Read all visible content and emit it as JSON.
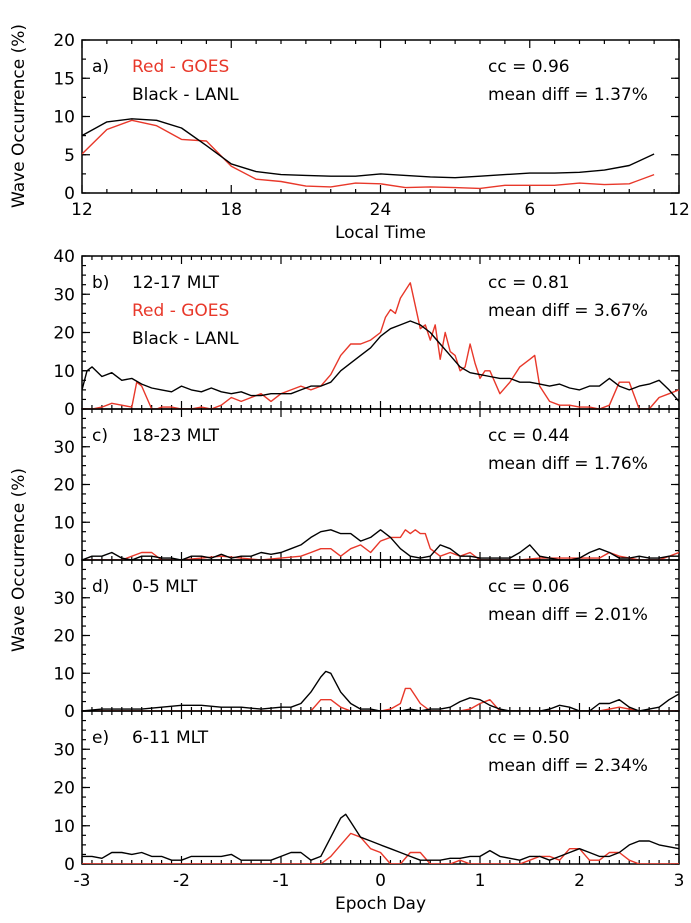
{
  "chart_data": [
    {
      "type": "line",
      "panel": "a)",
      "ylabel": "Wave Occurrence (%)",
      "xlabel": "Local Time",
      "xlim": [
        0,
        24
      ],
      "xticks": [
        0,
        6,
        12,
        18,
        24
      ],
      "xticklabels": [
        "12",
        "18",
        "24",
        "6",
        "12"
      ],
      "ylim": [
        0,
        20
      ],
      "yticks": [
        0,
        5,
        10,
        15,
        20
      ],
      "legend": [
        {
          "text": "Red - GOES",
          "color": "#e8382a"
        },
        {
          "text": "Black - LANL",
          "color": "#000000"
        }
      ],
      "cc_text": "cc = 0.96",
      "diff_text": "mean diff = 1.37%",
      "series": [
        {
          "name": "LANL",
          "color": "#000000",
          "x": [
            0,
            1,
            2,
            3,
            4,
            5,
            6,
            7,
            8,
            9,
            10,
            11,
            12,
            13,
            14,
            15,
            16,
            17,
            18,
            19,
            20,
            21,
            22,
            23
          ],
          "values": [
            7.5,
            9.3,
            9.7,
            9.5,
            8.5,
            6.2,
            3.8,
            2.8,
            2.4,
            2.3,
            2.2,
            2.2,
            2.5,
            2.3,
            2.1,
            2.0,
            2.2,
            2.4,
            2.6,
            2.6,
            2.7,
            3.0,
            3.6,
            5.1
          ]
        },
        {
          "name": "GOES",
          "color": "#e8382a",
          "x": [
            0,
            1,
            2,
            3,
            4,
            5,
            6,
            7,
            8,
            9,
            10,
            11,
            12,
            13,
            14,
            15,
            16,
            17,
            18,
            19,
            20,
            21,
            22,
            23
          ],
          "values": [
            5.1,
            8.3,
            9.5,
            8.8,
            7.0,
            6.8,
            3.5,
            1.8,
            1.5,
            0.9,
            0.8,
            1.3,
            1.2,
            0.7,
            0.8,
            0.7,
            0.6,
            1.0,
            1.0,
            1.0,
            1.3,
            1.1,
            1.2,
            2.4
          ]
        }
      ]
    },
    {
      "type": "line",
      "panel": "b)",
      "label": "12-17 MLT",
      "xlim": [
        -3,
        3
      ],
      "ylim": [
        0,
        40
      ],
      "yticks": [
        0,
        10,
        20,
        30,
        40
      ],
      "legend": [
        {
          "text": "Red - GOES",
          "color": "#e8382a"
        },
        {
          "text": "Black - LANL",
          "color": "#000000"
        }
      ],
      "cc_text": "cc = 0.81",
      "diff_text": "mean diff = 3.67%",
      "series": [
        {
          "name": "LANL",
          "color": "#000000",
          "x": [
            -3.0,
            -2.95,
            -2.9,
            -2.8,
            -2.7,
            -2.6,
            -2.5,
            -2.4,
            -2.3,
            -2.2,
            -2.1,
            -2.0,
            -1.9,
            -1.8,
            -1.7,
            -1.6,
            -1.5,
            -1.4,
            -1.3,
            -1.2,
            -1.1,
            -1.0,
            -0.9,
            -0.8,
            -0.7,
            -0.6,
            -0.5,
            -0.4,
            -0.3,
            -0.2,
            -0.1,
            0.0,
            0.1,
            0.2,
            0.3,
            0.4,
            0.5,
            0.6,
            0.7,
            0.8,
            0.9,
            1.0,
            1.1,
            1.2,
            1.3,
            1.4,
            1.5,
            1.6,
            1.7,
            1.8,
            1.9,
            2.0,
            2.1,
            2.2,
            2.3,
            2.4,
            2.5,
            2.6,
            2.7,
            2.8,
            2.9,
            3.0
          ],
          "values": [
            5,
            10,
            11,
            8.5,
            9.5,
            7.5,
            8,
            6.5,
            5.5,
            5,
            4.5,
            6,
            5,
            4.5,
            5.5,
            4.5,
            4,
            4.5,
            3.5,
            3.5,
            4,
            4,
            4,
            5,
            6,
            6,
            7,
            10,
            12,
            14,
            16,
            19,
            21,
            22,
            23,
            22,
            20,
            17,
            14,
            11,
            9.5,
            9,
            8.5,
            8,
            8,
            7,
            7,
            6.5,
            6,
            6.5,
            5.5,
            5,
            6,
            6,
            8,
            6,
            5,
            6,
            6.5,
            7.5,
            5,
            2
          ]
        },
        {
          "name": "GOES",
          "color": "#e8382a",
          "x": [
            -3.0,
            -2.9,
            -2.8,
            -2.7,
            -2.6,
            -2.5,
            -2.45,
            -2.4,
            -2.3,
            -2.25,
            -2.2,
            -2.1,
            -2.0,
            -1.9,
            -1.8,
            -1.7,
            -1.6,
            -1.5,
            -1.4,
            -1.3,
            -1.2,
            -1.1,
            -1.0,
            -0.9,
            -0.8,
            -0.7,
            -0.6,
            -0.5,
            -0.4,
            -0.3,
            -0.2,
            -0.1,
            0.0,
            0.05,
            0.1,
            0.15,
            0.2,
            0.25,
            0.3,
            0.35,
            0.4,
            0.45,
            0.5,
            0.55,
            0.6,
            0.65,
            0.7,
            0.75,
            0.8,
            0.85,
            0.9,
            0.95,
            1.0,
            1.05,
            1.1,
            1.2,
            1.3,
            1.4,
            1.5,
            1.55,
            1.6,
            1.7,
            1.8,
            1.9,
            2.0,
            2.1,
            2.2,
            2.3,
            2.4,
            2.5,
            2.6,
            2.7,
            2.8,
            2.9,
            3.0
          ],
          "values": [
            0,
            0,
            0.5,
            1.5,
            1,
            0.5,
            7,
            6,
            0,
            0,
            0.5,
            0.5,
            0,
            0,
            0.5,
            0,
            1,
            3,
            2,
            3,
            4,
            2,
            4,
            5,
            6,
            5,
            6,
            9,
            14,
            17,
            17,
            18,
            20,
            24,
            26,
            25,
            29,
            31,
            33,
            27,
            21,
            22,
            18,
            22,
            13,
            20,
            15,
            14,
            10,
            11,
            17,
            12,
            8,
            10,
            10,
            4,
            7,
            11,
            13,
            14,
            6,
            2,
            1,
            1,
            0.5,
            0.5,
            0,
            1,
            7,
            7,
            0,
            0,
            3,
            4,
            5
          ]
        }
      ]
    },
    {
      "type": "line",
      "panel": "c)",
      "label": "18-23 MLT",
      "xlim": [
        -3,
        3
      ],
      "ylim": [
        0,
        40
      ],
      "yticks": [
        0,
        10,
        20,
        30
      ],
      "cc_text": "cc = 0.44",
      "diff_text": "mean diff = 1.76%",
      "series": [
        {
          "name": "LANL",
          "color": "#000000",
          "x": [
            -3.0,
            -2.9,
            -2.8,
            -2.7,
            -2.6,
            -2.5,
            -2.4,
            -2.3,
            -2.2,
            -2.1,
            -2.0,
            -1.9,
            -1.8,
            -1.7,
            -1.6,
            -1.5,
            -1.4,
            -1.3,
            -1.2,
            -1.1,
            -1.0,
            -0.9,
            -0.8,
            -0.7,
            -0.6,
            -0.5,
            -0.4,
            -0.3,
            -0.2,
            -0.1,
            0.0,
            0.1,
            0.2,
            0.3,
            0.4,
            0.5,
            0.6,
            0.7,
            0.8,
            0.9,
            1.0,
            1.1,
            1.2,
            1.3,
            1.4,
            1.5,
            1.6,
            1.7,
            1.8,
            1.9,
            2.0,
            2.1,
            2.2,
            2.3,
            2.4,
            2.5,
            2.6,
            2.7,
            2.8,
            2.9,
            3.0
          ],
          "values": [
            0,
            1,
            1,
            2,
            0.5,
            0,
            1,
            1,
            0.5,
            0.5,
            0,
            1,
            1,
            0.5,
            1.5,
            0.5,
            1,
            1,
            2,
            1.5,
            2,
            3,
            4,
            6,
            7.5,
            8,
            7,
            7,
            5,
            6,
            8,
            6,
            3,
            1,
            0.5,
            1,
            4,
            3,
            1,
            1,
            0.5,
            0.5,
            0.5,
            0.5,
            2,
            4,
            1,
            0.5,
            0,
            0,
            0.5,
            2,
            3,
            2,
            0.5,
            0.5,
            1,
            0.5,
            0.5,
            1,
            1
          ]
        },
        {
          "name": "GOES",
          "color": "#e8382a",
          "x": [
            -3.0,
            -2.8,
            -2.6,
            -2.4,
            -2.3,
            -2.2,
            -2.0,
            -1.8,
            -1.6,
            -1.4,
            -1.2,
            -1.0,
            -0.8,
            -0.7,
            -0.6,
            -0.5,
            -0.4,
            -0.3,
            -0.2,
            -0.1,
            0.0,
            0.1,
            0.2,
            0.25,
            0.3,
            0.35,
            0.4,
            0.45,
            0.5,
            0.6,
            0.7,
            0.8,
            0.9,
            1.0,
            1.2,
            1.4,
            1.6,
            1.8,
            2.0,
            2.2,
            2.3,
            2.4,
            2.6,
            2.8,
            3.0
          ],
          "values": [
            0,
            0,
            0,
            2,
            2,
            0,
            0,
            0.5,
            1,
            0.5,
            0,
            0.5,
            1,
            2,
            3,
            3,
            1,
            3,
            4,
            2,
            5,
            6,
            6,
            8,
            7,
            8,
            7,
            7,
            3,
            1,
            2,
            1,
            2,
            0,
            0,
            0,
            0.5,
            0.5,
            0.5,
            0.5,
            2,
            1,
            0,
            0,
            2
          ]
        }
      ]
    },
    {
      "type": "line",
      "panel": "d)",
      "label": "0-5 MLT",
      "xlim": [
        -3,
        3
      ],
      "ylim": [
        0,
        40
      ],
      "yticks": [
        0,
        10,
        20,
        30
      ],
      "cc_text": "cc = 0.06",
      "diff_text": "mean diff = 2.01%",
      "series": [
        {
          "name": "LANL",
          "color": "#000000",
          "x": [
            -3.0,
            -2.8,
            -2.6,
            -2.4,
            -2.2,
            -2.0,
            -1.8,
            -1.6,
            -1.4,
            -1.2,
            -1.0,
            -0.9,
            -0.8,
            -0.7,
            -0.6,
            -0.55,
            -0.5,
            -0.4,
            -0.3,
            -0.2,
            -0.1,
            0.0,
            0.1,
            0.2,
            0.3,
            0.4,
            0.5,
            0.6,
            0.7,
            0.8,
            0.9,
            1.0,
            1.1,
            1.2,
            1.3,
            1.4,
            1.5,
            1.6,
            1.7,
            1.8,
            1.9,
            2.0,
            2.1,
            2.2,
            2.3,
            2.4,
            2.5,
            2.6,
            2.7,
            2.8,
            2.9,
            3.0
          ],
          "values": [
            0,
            0.5,
            0.5,
            0.5,
            1,
            1.5,
            1.5,
            1,
            1,
            0.5,
            1,
            1,
            2,
            5,
            9,
            10.5,
            10,
            5,
            2,
            0.5,
            0.5,
            0,
            0,
            0,
            0.5,
            0,
            0.5,
            0.5,
            1,
            2.5,
            3.5,
            3,
            1.5,
            0.5,
            0,
            0,
            0,
            0,
            0.5,
            1.5,
            1,
            0,
            0,
            2,
            2,
            3,
            1,
            0,
            0.5,
            1,
            3,
            4.5
          ]
        },
        {
          "name": "GOES",
          "color": "#e8382a",
          "x": [
            -3.0,
            -2.0,
            -1.0,
            -0.7,
            -0.6,
            -0.5,
            -0.4,
            -0.3,
            -0.2,
            0.0,
            0.1,
            0.2,
            0.25,
            0.3,
            0.35,
            0.4,
            0.5,
            0.6,
            0.8,
            0.9,
            1.0,
            1.1,
            1.2,
            1.4,
            1.6,
            1.8,
            2.0,
            2.2,
            2.4,
            2.6,
            2.8,
            3.0
          ],
          "values": [
            0,
            0,
            0,
            0,
            3,
            3,
            1,
            0,
            0,
            0,
            0.5,
            2,
            6,
            6,
            4,
            2,
            0,
            0,
            0,
            0.5,
            2,
            3,
            0,
            0,
            0,
            0,
            0,
            0,
            1,
            0,
            0,
            0
          ]
        }
      ]
    },
    {
      "type": "line",
      "panel": "e)",
      "label": "6-11 MLT",
      "xlim": [
        -3,
        3
      ],
      "ylim": [
        0,
        40
      ],
      "yticks": [
        0,
        10,
        20,
        30
      ],
      "xticks": [
        -3,
        -2,
        -1,
        0,
        1,
        2,
        3
      ],
      "xticklabels": [
        "-3",
        "-2",
        "-1",
        "0",
        "1",
        "2",
        "3"
      ],
      "xlabel": "Epoch Day",
      "cc_text": "cc = 0.50",
      "diff_text": "mean diff = 2.34%",
      "series": [
        {
          "name": "LANL",
          "color": "#000000",
          "x": [
            -3.0,
            -2.9,
            -2.8,
            -2.7,
            -2.6,
            -2.5,
            -2.4,
            -2.3,
            -2.2,
            -2.1,
            -2.0,
            -1.9,
            -1.8,
            -1.7,
            -1.6,
            -1.5,
            -1.4,
            -1.3,
            -1.2,
            -1.1,
            -1.0,
            -0.9,
            -0.8,
            -0.7,
            -0.6,
            -0.5,
            -0.4,
            -0.35,
            -0.3,
            -0.2,
            -0.1,
            0.0,
            0.1,
            0.2,
            0.3,
            0.4,
            0.5,
            0.6,
            0.7,
            0.8,
            0.9,
            1.0,
            1.1,
            1.2,
            1.3,
            1.4,
            1.5,
            1.6,
            1.7,
            1.8,
            1.9,
            2.0,
            2.1,
            2.2,
            2.3,
            2.4,
            2.5,
            2.6,
            2.7,
            2.8,
            2.9,
            3.0
          ],
          "values": [
            2,
            2,
            1.5,
            3,
            3,
            2.5,
            3,
            2,
            2,
            1,
            1,
            2,
            2,
            2,
            2,
            2.5,
            1,
            1,
            1,
            1,
            2,
            3,
            3,
            1,
            2,
            7,
            12,
            13,
            11,
            7,
            6,
            5,
            4,
            3,
            2,
            1,
            1,
            1,
            1.5,
            1.5,
            2,
            2,
            3.5,
            2,
            1.5,
            1,
            2,
            2,
            1,
            2,
            3,
            4,
            3,
            2,
            2,
            3,
            5,
            6,
            6,
            5,
            4.5,
            4
          ]
        },
        {
          "name": "GOES",
          "color": "#e8382a",
          "x": [
            -3.0,
            -2.5,
            -2.0,
            -1.5,
            -1.0,
            -0.8,
            -0.6,
            -0.5,
            -0.4,
            -0.3,
            -0.2,
            -0.1,
            0.0,
            0.1,
            0.2,
            0.3,
            0.4,
            0.5,
            0.6,
            0.7,
            0.8,
            0.9,
            1.0,
            1.1,
            1.2,
            1.3,
            1.4,
            1.5,
            1.6,
            1.7,
            1.8,
            1.9,
            2.0,
            2.1,
            2.2,
            2.3,
            2.4,
            2.5,
            2.6,
            2.8,
            3.0
          ],
          "values": [
            0,
            0,
            0,
            0,
            0,
            0,
            0,
            2,
            5,
            8,
            7,
            4,
            3,
            0,
            0,
            3,
            3,
            0,
            0,
            0,
            1,
            0,
            0,
            0,
            0,
            0,
            0,
            1,
            2,
            2,
            1,
            4,
            4,
            1,
            1,
            3,
            3,
            1,
            0,
            0,
            0
          ]
        }
      ]
    }
  ]
}
